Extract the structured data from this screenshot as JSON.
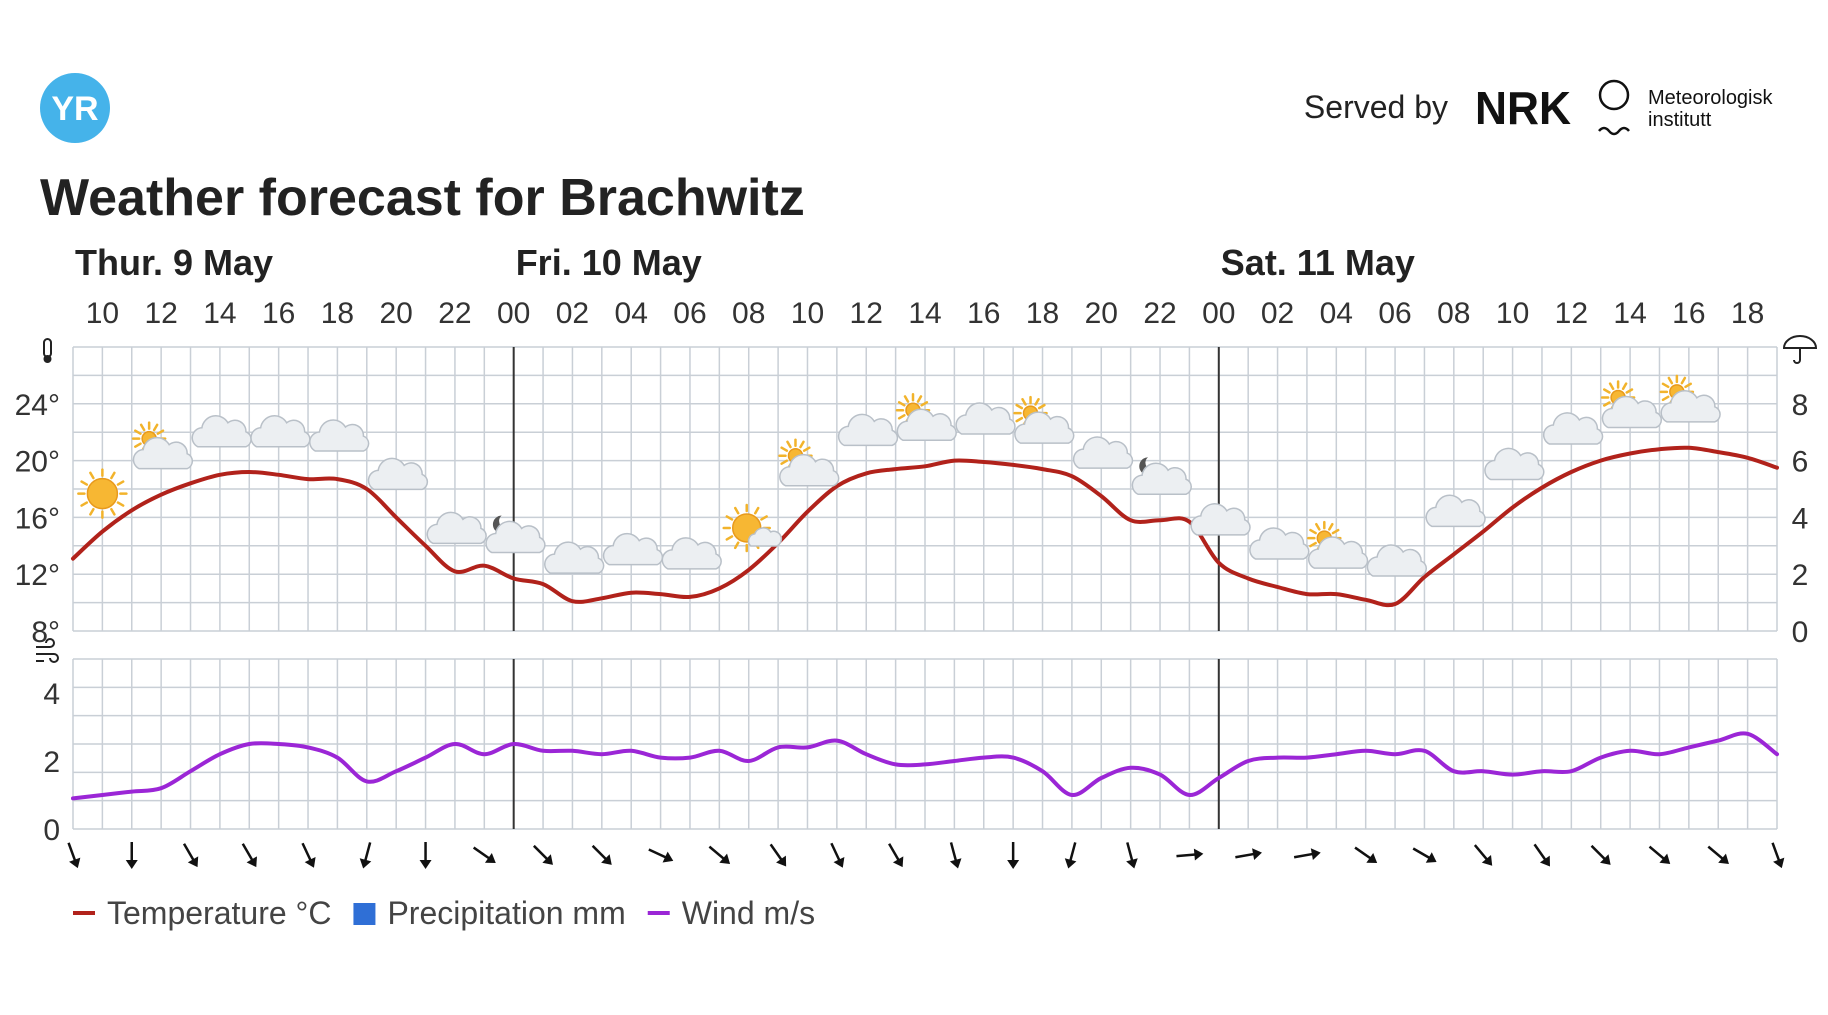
{
  "header": {
    "logo_text": "YR",
    "served_by": "Served by",
    "nrk_logo_text": "NRK",
    "met_line1": "Meteorologisk",
    "met_line2": "institutt",
    "title": "Weather forecast for Brachwitz"
  },
  "colors": {
    "temperature": "#b1221b",
    "precipitation": "#2f6fd6",
    "wind": "#9b26d6",
    "grid": "#c9cfd6",
    "day_divider": "#333333",
    "yr_logo": "#45b3ea"
  },
  "legend": [
    {
      "label": "Temperature °C",
      "color": "#b1221b",
      "shape": "line"
    },
    {
      "label": "Precipitation mm",
      "color": "#2f6fd6",
      "shape": "square"
    },
    {
      "label": "Wind m/s",
      "color": "#9b26d6",
      "shape": "line"
    }
  ],
  "chart_data": [
    {
      "type": "line",
      "title": "",
      "days": [
        {
          "label": "Thur. 9 May",
          "start_hour": 9
        },
        {
          "label": "Fri. 10 May",
          "start_hour": 24
        },
        {
          "label": "Sat. 11 May",
          "start_hour": 48
        }
      ],
      "hour_range": [
        9,
        67
      ],
      "hour_tick_labels": [
        "10",
        "12",
        "14",
        "16",
        "18",
        "20",
        "22",
        "00",
        "02",
        "04",
        "06",
        "08",
        "10",
        "12",
        "14",
        "16",
        "18",
        "20",
        "22",
        "00",
        "02",
        "04",
        "06",
        "08",
        "10",
        "12",
        "14",
        "16",
        "18"
      ],
      "hour_tick_positions": [
        10,
        12,
        14,
        16,
        18,
        20,
        22,
        24,
        26,
        28,
        30,
        32,
        34,
        36,
        38,
        40,
        42,
        44,
        46,
        48,
        50,
        52,
        54,
        56,
        58,
        60,
        62,
        64,
        66
      ],
      "ylim": [
        8,
        28
      ],
      "y_ticks": [
        8,
        12,
        16,
        20,
        24
      ],
      "y_tick_labels": [
        "8°",
        "12°",
        "16°",
        "20°",
        "24°"
      ],
      "y2lim": [
        0,
        10
      ],
      "y2_ticks": [
        0,
        2,
        4,
        6,
        8
      ],
      "y2_tick_labels": [
        "0",
        "2",
        "4",
        "6",
        "8"
      ],
      "grid": true,
      "series": [
        {
          "name": "Temperature °C",
          "x": [
            9,
            10,
            11,
            12,
            13,
            14,
            15,
            16,
            17,
            18,
            19,
            20,
            21,
            22,
            23,
            24,
            25,
            26,
            27,
            28,
            29,
            30,
            31,
            32,
            33,
            34,
            35,
            36,
            37,
            38,
            39,
            40,
            41,
            42,
            43,
            44,
            45,
            46,
            47,
            48,
            49,
            50,
            51,
            52,
            53,
            54,
            55,
            56,
            57,
            58,
            59,
            60,
            61,
            62,
            63,
            64,
            65,
            66,
            67
          ],
          "y": [
            13.1,
            15.0,
            16.5,
            17.6,
            18.4,
            19.0,
            19.2,
            19.0,
            18.7,
            18.7,
            18.0,
            16.0,
            14.0,
            12.2,
            12.6,
            11.7,
            11.3,
            10.1,
            10.3,
            10.7,
            10.6,
            10.4,
            11.0,
            12.3,
            14.2,
            16.4,
            18.2,
            19.1,
            19.4,
            19.6,
            20.0,
            19.9,
            19.7,
            19.4,
            18.9,
            17.5,
            15.8,
            15.8,
            15.7,
            12.8,
            11.7,
            11.1,
            10.6,
            10.6,
            10.2,
            9.9,
            11.8,
            13.4,
            15.0,
            16.7,
            18.1,
            19.2,
            20.0,
            20.5,
            20.8,
            20.9,
            20.6,
            20.2,
            19.5
          ]
        },
        {
          "name": "Precipitation mm",
          "x": [],
          "y": []
        }
      ],
      "weather_symbols": [
        {
          "hour": 10,
          "icon": "sun-icon"
        },
        {
          "hour": 12,
          "icon": "partly-cloudy-day-icon"
        },
        {
          "hour": 14,
          "icon": "cloud-icon"
        },
        {
          "hour": 16,
          "icon": "cloud-icon"
        },
        {
          "hour": 18,
          "icon": "cloud-icon"
        },
        {
          "hour": 20,
          "icon": "cloud-icon"
        },
        {
          "hour": 22,
          "icon": "cloud-icon"
        },
        {
          "hour": 24,
          "icon": "partly-cloudy-night-icon"
        },
        {
          "hour": 26,
          "icon": "cloud-icon"
        },
        {
          "hour": 28,
          "icon": "cloud-icon"
        },
        {
          "hour": 30,
          "icon": "cloud-icon"
        },
        {
          "hour": 32,
          "icon": "fair-day-icon"
        },
        {
          "hour": 34,
          "icon": "partly-cloudy-day-icon"
        },
        {
          "hour": 36,
          "icon": "cloud-icon"
        },
        {
          "hour": 38,
          "icon": "partly-cloudy-day-icon"
        },
        {
          "hour": 40,
          "icon": "cloud-icon"
        },
        {
          "hour": 42,
          "icon": "partly-cloudy-day-icon"
        },
        {
          "hour": 44,
          "icon": "cloud-icon"
        },
        {
          "hour": 46,
          "icon": "partly-cloudy-night-icon"
        },
        {
          "hour": 48,
          "icon": "cloud-icon"
        },
        {
          "hour": 50,
          "icon": "cloud-icon"
        },
        {
          "hour": 52,
          "icon": "partly-cloudy-day-icon"
        },
        {
          "hour": 54,
          "icon": "cloud-icon"
        },
        {
          "hour": 56,
          "icon": "cloud-icon"
        },
        {
          "hour": 58,
          "icon": "cloud-icon"
        },
        {
          "hour": 60,
          "icon": "cloud-icon"
        },
        {
          "hour": 62,
          "icon": "partly-cloudy-day-icon"
        },
        {
          "hour": 64,
          "icon": "partly-cloudy-day-icon"
        }
      ]
    },
    {
      "type": "line",
      "title": "",
      "hour_range": [
        9,
        67
      ],
      "ylim": [
        0,
        5
      ],
      "y_ticks": [
        0,
        2,
        4
      ],
      "y_tick_labels": [
        "0",
        "2",
        "4"
      ],
      "grid": true,
      "series": [
        {
          "name": "Wind m/s",
          "x": [
            9,
            10,
            11,
            12,
            13,
            14,
            15,
            16,
            17,
            18,
            19,
            20,
            21,
            22,
            23,
            24,
            25,
            26,
            27,
            28,
            29,
            30,
            31,
            32,
            33,
            34,
            35,
            36,
            37,
            38,
            39,
            40,
            41,
            42,
            43,
            44,
            45,
            46,
            47,
            48,
            49,
            50,
            51,
            52,
            53,
            54,
            55,
            56,
            57,
            58,
            59,
            60,
            61,
            62,
            63,
            64,
            65,
            66,
            67
          ],
          "y": [
            0.9,
            1.0,
            1.1,
            1.2,
            1.7,
            2.2,
            2.5,
            2.5,
            2.4,
            2.1,
            1.4,
            1.7,
            2.1,
            2.5,
            2.2,
            2.5,
            2.3,
            2.3,
            2.2,
            2.3,
            2.1,
            2.1,
            2.3,
            2.0,
            2.4,
            2.4,
            2.6,
            2.2,
            1.9,
            1.9,
            2.0,
            2.1,
            2.1,
            1.7,
            1.0,
            1.5,
            1.8,
            1.6,
            1.0,
            1.5,
            2.0,
            2.1,
            2.1,
            2.2,
            2.3,
            2.2,
            2.3,
            1.7,
            1.7,
            1.6,
            1.7,
            1.7,
            2.1,
            2.3,
            2.2,
            2.4,
            2.6,
            2.8,
            2.2
          ]
        }
      ],
      "wind_direction_x": [
        9,
        11,
        13,
        15,
        17,
        19,
        21,
        23,
        25,
        27,
        29,
        31,
        33,
        35,
        37,
        39,
        41,
        43,
        45,
        47,
        49,
        51,
        53,
        55,
        57,
        59,
        61,
        63,
        65,
        67
      ],
      "wind_direction_deg": [
        -20,
        0,
        -30,
        -30,
        -25,
        15,
        0,
        -55,
        -45,
        -45,
        -65,
        -50,
        -35,
        -25,
        -30,
        -15,
        0,
        15,
        -15,
        -95,
        -100,
        -100,
        -55,
        -60,
        -40,
        -35,
        -45,
        -50,
        -50,
        -20
      ]
    }
  ]
}
